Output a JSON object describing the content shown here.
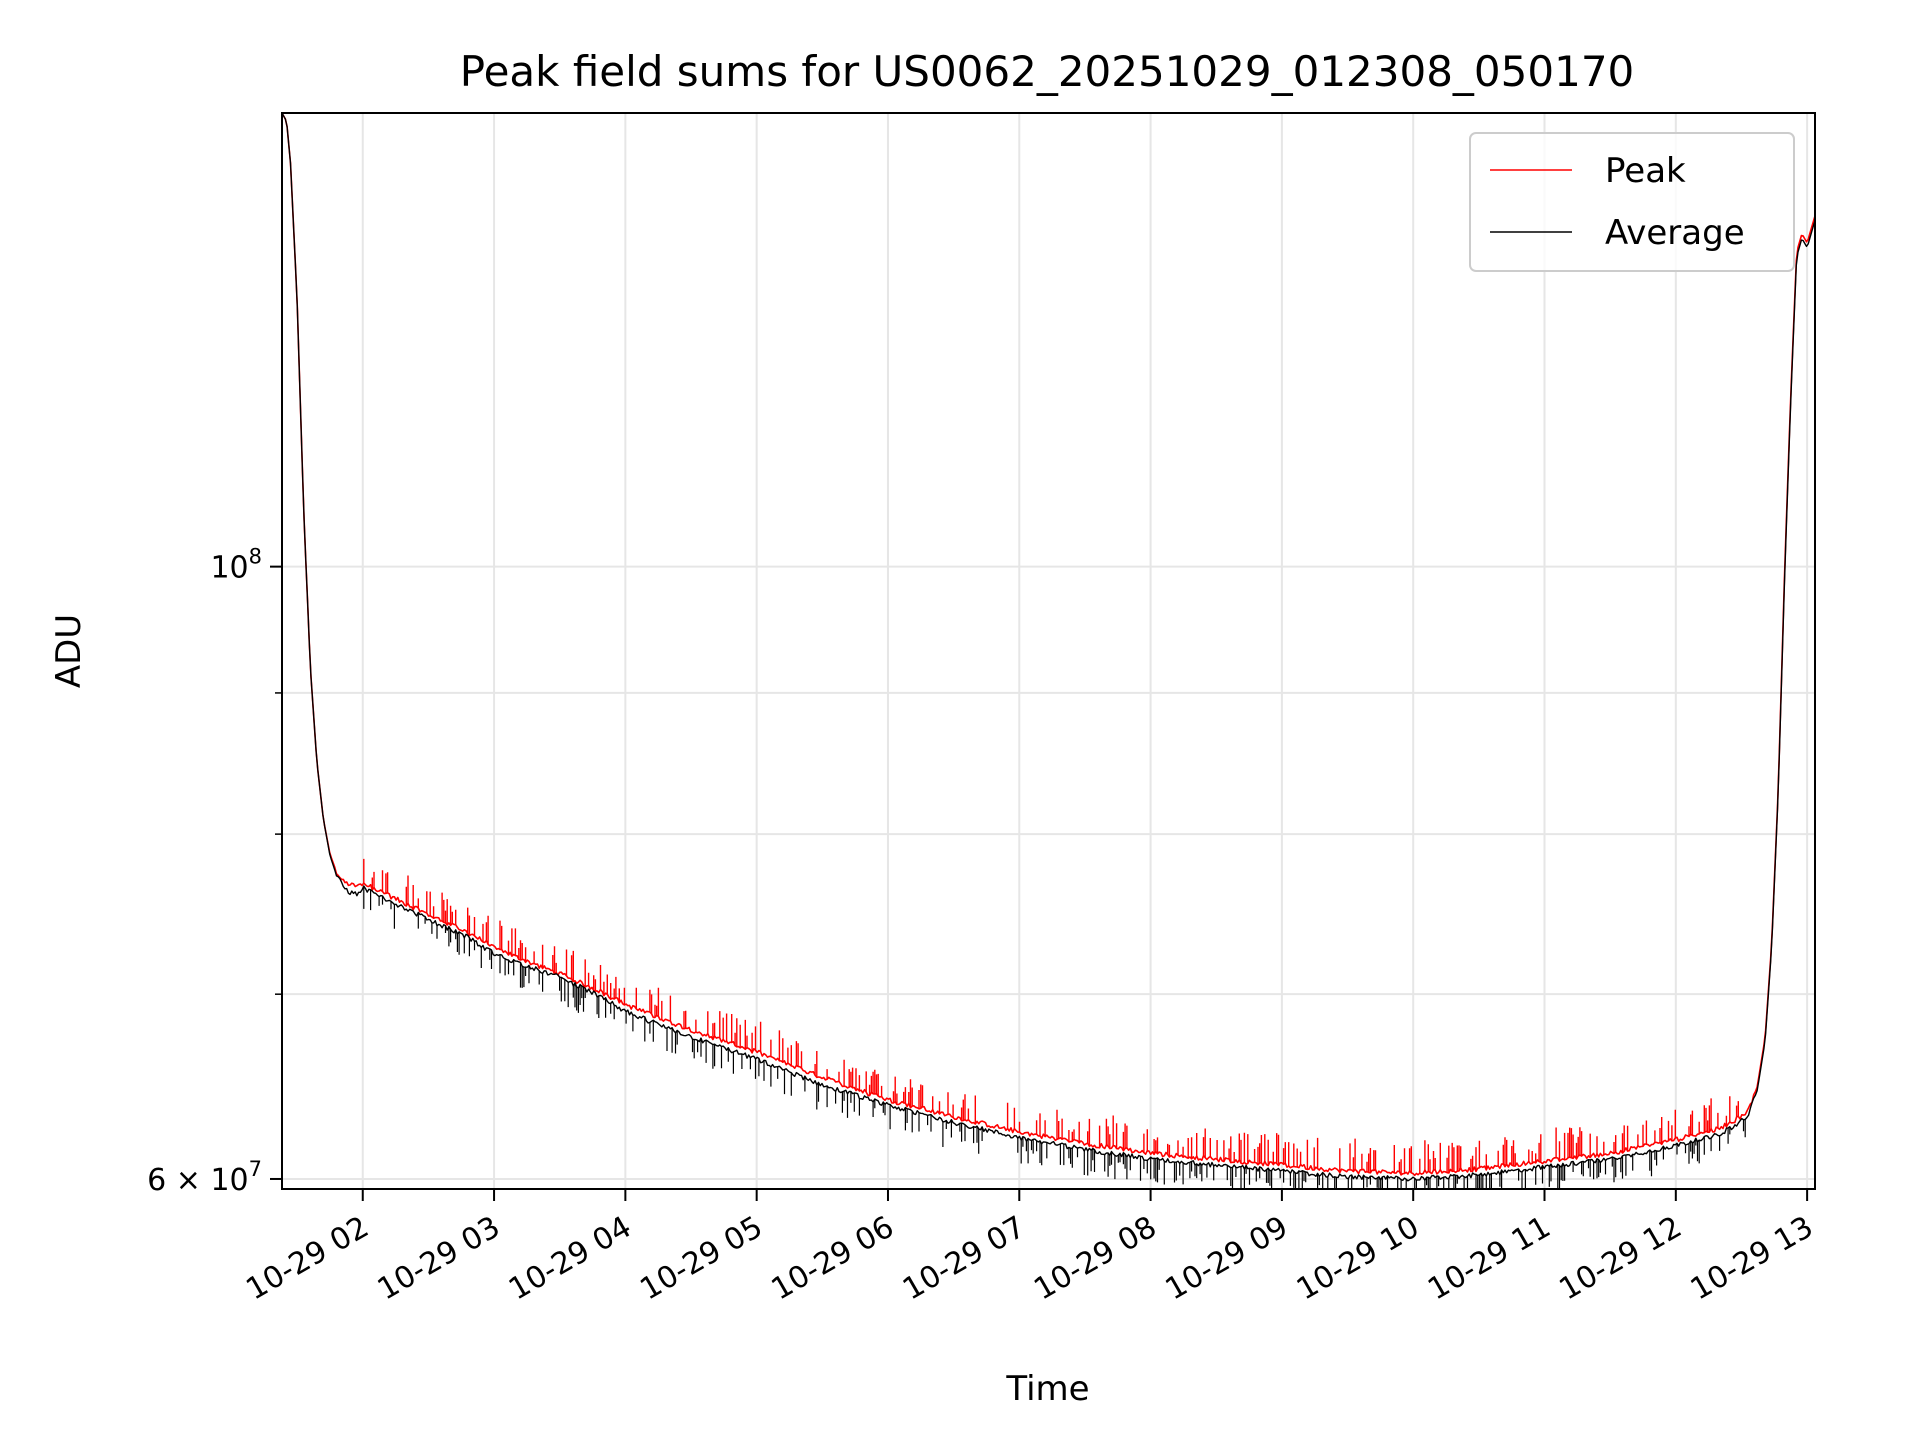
{
  "chart_data": {
    "type": "line",
    "title": "Peak field sums for US0062_20251029_012308_050170",
    "xlabel": "Time",
    "ylabel": "ADU",
    "yscale": "log",
    "x_unit": "hours since 10-29 00:00",
    "xlim": [
      1.385,
      13.06
    ],
    "ylim": [
      59500000,
      146000000
    ],
    "grid": true,
    "legend_position": "top-right",
    "x_ticks": [
      {
        "value": 2,
        "label": "10-29 02"
      },
      {
        "value": 3,
        "label": "10-29 03"
      },
      {
        "value": 4,
        "label": "10-29 04"
      },
      {
        "value": 5,
        "label": "10-29 05"
      },
      {
        "value": 6,
        "label": "10-29 06"
      },
      {
        "value": 7,
        "label": "10-29 07"
      },
      {
        "value": 8,
        "label": "10-29 08"
      },
      {
        "value": 9,
        "label": "10-29 09"
      },
      {
        "value": 10,
        "label": "10-29 10"
      },
      {
        "value": 11,
        "label": "10-29 11"
      },
      {
        "value": 12,
        "label": "10-29 12"
      },
      {
        "value": 13,
        "label": "10-29 13"
      }
    ],
    "y_major_ticks": [
      {
        "value": 100000000,
        "base": "10",
        "exp": "8"
      },
      {
        "value": 60000000,
        "mantissa": "6",
        "base": "10",
        "exp": "7"
      }
    ],
    "y_minor_ticks": [
      70000000,
      80000000,
      90000000
    ],
    "series": [
      {
        "name": "Peak",
        "color": "#ff0000",
        "x": [
          1.385,
          1.42,
          1.45,
          1.5,
          1.55,
          1.6,
          1.65,
          1.7,
          1.75,
          1.8,
          1.85,
          1.9,
          1.97,
          2.0,
          2.1,
          2.3,
          2.5,
          2.8,
          3.0,
          3.2,
          3.5,
          3.8,
          4.0,
          4.3,
          4.6,
          5.0,
          5.5,
          6.0,
          6.5,
          7.0,
          7.5,
          8.0,
          8.5,
          9.0,
          9.5,
          10.0,
          10.5,
          11.0,
          11.5,
          12.0,
          12.3,
          12.45,
          12.55,
          12.62,
          12.68,
          12.73,
          12.78,
          12.83,
          12.88,
          12.92,
          12.96,
          13.0,
          13.06
        ],
        "y": [
          146000000,
          145000000,
          140000000,
          125000000,
          105000000,
          92000000,
          85000000,
          81000000,
          78700000,
          77500000,
          76900000,
          76700000,
          76600000,
          76800000,
          76400000,
          75600000,
          74800000,
          73700000,
          72800000,
          72100000,
          71200000,
          70200000,
          69400000,
          68500000,
          67700000,
          66700000,
          65300000,
          64100000,
          63200000,
          62400000,
          61800000,
          61300000,
          61000000,
          60700000,
          60400000,
          60300000,
          60500000,
          60900000,
          61300000,
          62000000,
          62500000,
          63000000,
          63500000,
          64800000,
          67500000,
          73000000,
          83000000,
          100000000,
          117000000,
          130000000,
          132000000,
          131000000,
          134000000
        ]
      },
      {
        "name": "Average",
        "color": "#000000",
        "x": [
          1.385,
          1.42,
          1.45,
          1.5,
          1.55,
          1.6,
          1.65,
          1.7,
          1.75,
          1.8,
          1.85,
          1.9,
          1.97,
          2.0,
          2.1,
          2.3,
          2.5,
          2.8,
          3.0,
          3.2,
          3.5,
          3.8,
          4.0,
          4.3,
          4.6,
          5.0,
          5.5,
          6.0,
          6.5,
          7.0,
          7.5,
          8.0,
          8.5,
          9.0,
          9.5,
          10.0,
          10.5,
          11.0,
          11.5,
          12.0,
          12.3,
          12.45,
          12.55,
          12.62,
          12.68,
          12.73,
          12.78,
          12.83,
          12.88,
          12.92,
          12.96,
          13.0,
          13.06
        ],
        "y": [
          146000000,
          145000000,
          140000000,
          125000000,
          105000000,
          92000000,
          85000000,
          81000000,
          78600000,
          77300000,
          76600000,
          76200000,
          76100000,
          76500000,
          76100000,
          75300000,
          74500000,
          73400000,
          72400000,
          71800000,
          71000000,
          69900000,
          69000000,
          68100000,
          67300000,
          66300000,
          64900000,
          63800000,
          62900000,
          62100000,
          61500000,
          61000000,
          60700000,
          60400000,
          60100000,
          60000000,
          60200000,
          60600000,
          61000000,
          61700000,
          62200000,
          62700000,
          63300000,
          64600000,
          67300000,
          72800000,
          82800000,
          99500000,
          116500000,
          129500000,
          131500000,
          130500000,
          133500000
        ]
      }
    ]
  }
}
